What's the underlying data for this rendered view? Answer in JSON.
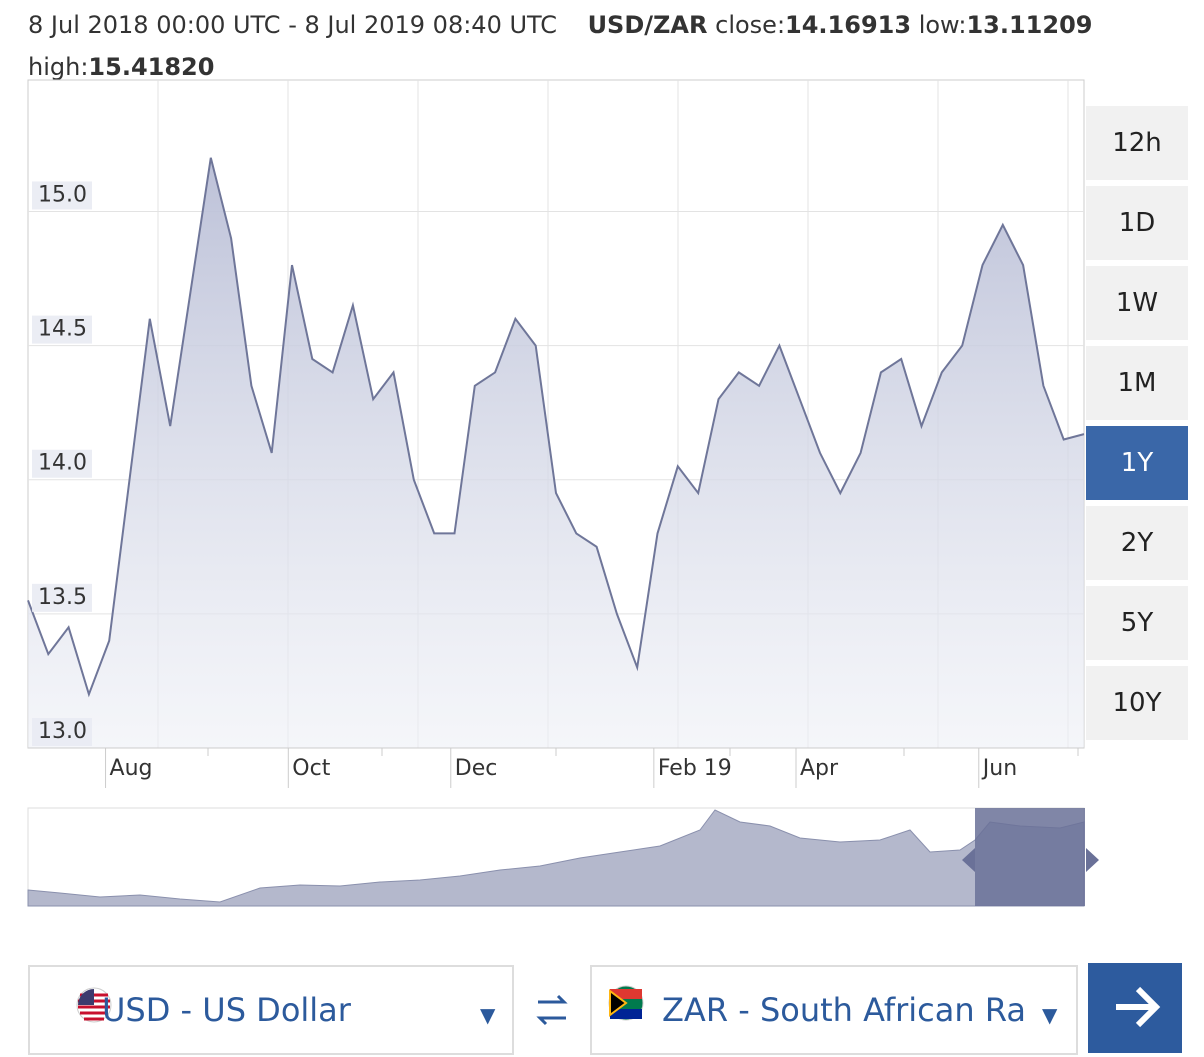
{
  "header": {
    "range": "8 Jul 2018 00:00 UTC - 8 Jul 2019 08:40 UTC",
    "pair": "USD/ZAR",
    "close_label": "close:",
    "close": "14.16913",
    "low_label": "low:",
    "low": "13.11209",
    "high_label": "high:",
    "high": "15.41820"
  },
  "ranges": {
    "buttons": [
      "12h",
      "1D",
      "1W",
      "1M",
      "1Y",
      "2Y",
      "5Y",
      "10Y"
    ],
    "active": "1Y"
  },
  "converter": {
    "from": "USD - US Dollar",
    "to": "ZAR - South African Rand"
  },
  "chart_data": {
    "type": "line",
    "color": "#6f7699",
    "categories": [
      null,
      null,
      null,
      null,
      null,
      "Aug",
      null,
      null,
      null,
      null,
      null,
      null,
      null,
      null,
      "Oct",
      null,
      null,
      null,
      null,
      null,
      null,
      null,
      "Dec",
      null,
      null,
      null,
      null,
      null,
      null,
      null,
      null,
      null,
      "Feb 19",
      null,
      null,
      null,
      null,
      null,
      null,
      "Apr",
      null,
      null,
      null,
      null,
      null,
      null,
      null,
      null,
      "Jun",
      null,
      null,
      null,
      null
    ],
    "values": [
      13.55,
      13.35,
      13.45,
      13.2,
      13.4,
      14.0,
      14.6,
      14.2,
      14.7,
      15.2,
      14.9,
      14.35,
      14.1,
      14.8,
      14.45,
      14.4,
      14.65,
      14.3,
      14.4,
      14.0,
      13.8,
      13.8,
      14.35,
      14.4,
      14.6,
      14.5,
      13.95,
      13.8,
      13.75,
      13.5,
      13.3,
      13.8,
      14.05,
      13.95,
      14.3,
      14.4,
      14.35,
      14.5,
      14.3,
      14.1,
      13.95,
      14.1,
      14.4,
      14.45,
      14.2,
      14.4,
      14.5,
      14.8,
      14.95,
      14.8,
      14.35,
      14.15,
      14.17
    ],
    "ylim": [
      13.0,
      15.49
    ],
    "yticks": [
      {
        "value": 13.0,
        "label": "13.0"
      },
      {
        "value": 13.5,
        "label": "13.5"
      },
      {
        "value": 14.0,
        "label": "14.0"
      },
      {
        "value": 14.5,
        "label": "14.5"
      },
      {
        "value": 15.0,
        "label": "15.0"
      }
    ],
    "grid": true
  }
}
